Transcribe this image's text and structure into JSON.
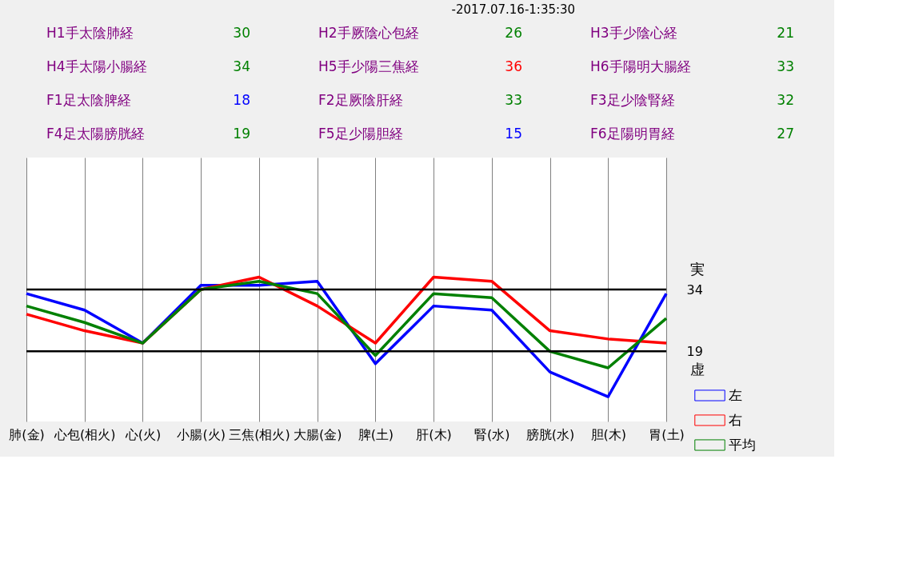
{
  "chart_data": {
    "type": "line",
    "title": "-2017.07.16-1:35:30",
    "annotations": [
      "H1手太陰肺経",
      "30",
      "H2手厥陰心包経",
      "26",
      "H3手少陰心経",
      "21",
      "H4手太陽小腸経",
      "34",
      "H5手少陽三焦経",
      "36",
      "H6手陽明大腸経",
      "33",
      "F1足太陰脾経",
      "18",
      "F2足厥陰肝経",
      "33",
      "F3足少陰腎経",
      "32",
      "F4足太陽膀胱経",
      "19",
      "F5足少陽胆経",
      "15",
      "F6足陽明胃経",
      "27"
    ],
    "categories": [
      "肺(金)",
      "心包(相火)",
      "心(火)",
      "小腸(火)",
      "三焦(相火)",
      "大腸(金)",
      "脾(土)",
      "肝(木)",
      "腎(水)",
      "膀胱(水)",
      "胆(木)",
      "胃(土)"
    ],
    "series": [
      {
        "name": "左",
        "color": "#0000ff",
        "values": [
          33,
          29,
          21,
          35,
          35,
          36,
          16,
          30,
          29,
          14,
          8,
          33
        ]
      },
      {
        "name": "右",
        "color": "#ff0000",
        "values": [
          28,
          24,
          21,
          34,
          37,
          30,
          21,
          37,
          36,
          24,
          22,
          21
        ]
      },
      {
        "name": "平均",
        "color": "#008000",
        "values": [
          30,
          26,
          21,
          34,
          36,
          33,
          18,
          33,
          32,
          19,
          15,
          27
        ]
      }
    ],
    "ylim": [
      2,
      66
    ],
    "yticks": [
      19,
      34
    ],
    "ref_lines": [
      {
        "axis": "y",
        "value": 34,
        "label": "実",
        "color": "#000000"
      },
      {
        "axis": "y",
        "value": 19,
        "label": "虚",
        "color": "#000000"
      }
    ],
    "grid": "x",
    "legend": "bottom right",
    "line_style": "solid",
    "marker": "none"
  }
}
